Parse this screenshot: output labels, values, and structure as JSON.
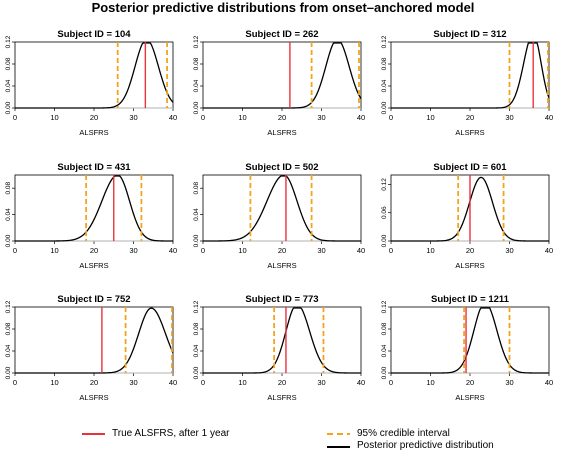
{
  "title": "Posterior predictive distributions from onset–anchored model",
  "legend": {
    "true_label": "True ALSFRS, after 1 year",
    "ci_label": "95% credible interval",
    "posterior_label": "Posterior predictive distribution"
  },
  "colors": {
    "true_line": "#e8333b",
    "ci_line": "#f5a31a",
    "density": "#000000",
    "baseline": "#b0b0b0"
  },
  "chart_data": [
    {
      "type": "line",
      "title": "Subject ID = 104",
      "xlabel": "ALSFRS",
      "xlim": [
        0,
        40
      ],
      "xticks": [
        0,
        10,
        20,
        30,
        40
      ],
      "ylim": [
        0,
        0.12
      ],
      "yticks": [
        "0.00",
        "0.04",
        "0.08",
        "0.12"
      ],
      "true_value": 33,
      "ci": [
        26,
        38.5
      ],
      "mode": 33.3,
      "sd_left": 2.9,
      "sd_right": 3.0,
      "peak": 0.125
    },
    {
      "type": "line",
      "title": "Subject ID = 262",
      "xlabel": "ALSFRS",
      "xlim": [
        0,
        40
      ],
      "xticks": [
        0,
        10,
        20,
        30,
        40
      ],
      "ylim": [
        0,
        0.12
      ],
      "yticks": [
        "0.00",
        "0.04",
        "0.08",
        "0.12"
      ],
      "true_value": 22,
      "ci": [
        27.5,
        39.5
      ],
      "mode": 34,
      "sd_left": 2.9,
      "sd_right": 3.0,
      "peak": 0.125
    },
    {
      "type": "line",
      "title": "Subject ID = 312",
      "xlabel": "ALSFRS",
      "xlim": [
        0,
        40
      ],
      "xticks": [
        0,
        10,
        20,
        30,
        40
      ],
      "ylim": [
        0,
        0.12
      ],
      "yticks": [
        "0.00",
        "0.04",
        "0.08",
        "0.12"
      ],
      "true_value": 36,
      "ci": [
        30,
        40.5
      ],
      "mode": 36,
      "sd_left": 2.4,
      "sd_right": 2.0,
      "peak": 0.135
    },
    {
      "type": "line",
      "title": "Subject ID = 431",
      "xlabel": "ALSFRS",
      "xlim": [
        0,
        40
      ],
      "xticks": [
        0,
        10,
        20,
        30,
        40
      ],
      "ylim": [
        0,
        0.1
      ],
      "yticks": [
        "0.00",
        "0.04",
        "0.08"
      ],
      "true_value": 25,
      "ci": [
        18,
        32
      ],
      "mode": 26,
      "sd_left": 4.0,
      "sd_right": 3.0,
      "peak": 0.1
    },
    {
      "type": "line",
      "title": "Subject ID = 502",
      "xlabel": "ALSFRS",
      "xlim": [
        0,
        40
      ],
      "xticks": [
        0,
        10,
        20,
        30,
        40
      ],
      "ylim": [
        0,
        0.1
      ],
      "yticks": [
        "0.00",
        "0.04",
        "0.08"
      ],
      "true_value": 21,
      "ci": [
        12,
        27.5
      ],
      "mode": 20.5,
      "sd_left": 4.3,
      "sd_right": 3.3,
      "peak": 0.1
    },
    {
      "type": "line",
      "title": "Subject ID = 601",
      "xlabel": "ALSFRS",
      "xlim": [
        0,
        40
      ],
      "xticks": [
        0,
        10,
        20,
        30,
        40
      ],
      "ylim": [
        0,
        0.14
      ],
      "yticks": [
        "0.00",
        "0.06",
        "0.12"
      ],
      "true_value": 20,
      "ci": [
        17,
        28.5
      ],
      "mode": 22.8,
      "sd_left": 2.9,
      "sd_right": 2.9,
      "peak": 0.135
    },
    {
      "type": "line",
      "title": "Subject ID = 752",
      "xlabel": "ALSFRS",
      "xlim": [
        0,
        40
      ],
      "xticks": [
        0,
        10,
        20,
        30,
        40
      ],
      "ylim": [
        0,
        0.12
      ],
      "yticks": [
        "0.00",
        "0.04",
        "0.08",
        "0.12"
      ],
      "true_value": 22,
      "ci": [
        28,
        40
      ],
      "mode": 34.5,
      "sd_left": 3.2,
      "sd_right": 3.6,
      "peak": 0.118
    },
    {
      "type": "line",
      "title": "Subject ID = 773",
      "xlabel": "ALSFRS",
      "xlim": [
        0,
        40
      ],
      "xticks": [
        0,
        10,
        20,
        30,
        40
      ],
      "ylim": [
        0,
        0.12
      ],
      "yticks": [
        "0.00",
        "0.04",
        "0.08",
        "0.12"
      ],
      "true_value": 21,
      "ci": [
        18,
        30.5
      ],
      "mode": 23.8,
      "sd_left": 2.8,
      "sd_right": 3.2,
      "peak": 0.125
    },
    {
      "type": "line",
      "title": "Subject ID = 1211",
      "xlabel": "ALSFRS",
      "xlim": [
        0,
        40
      ],
      "xticks": [
        0,
        10,
        20,
        30,
        40
      ],
      "ylim": [
        0,
        0.12
      ],
      "yticks": [
        "0.00",
        "0.04",
        "0.08",
        "0.12"
      ],
      "true_value": 19,
      "ci": [
        18.5,
        30
      ],
      "mode": 23.8,
      "sd_left": 2.8,
      "sd_right": 3.0,
      "peak": 0.128
    }
  ]
}
